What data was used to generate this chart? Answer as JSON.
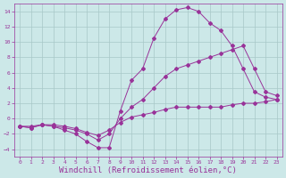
{
  "background_color": "#cce8e8",
  "grid_color": "#a8c8c8",
  "line_color": "#993399",
  "marker": "D",
  "marker_size": 2,
  "xlim": [
    -0.5,
    23.5
  ],
  "ylim": [
    -5,
    15
  ],
  "xlabel": "Windchill (Refroidissement éolien,°C)",
  "xlabel_fontsize": 6.5,
  "yticks": [
    -4,
    -2,
    0,
    2,
    4,
    6,
    8,
    10,
    12,
    14
  ],
  "xticks": [
    0,
    1,
    2,
    3,
    4,
    5,
    6,
    7,
    8,
    9,
    10,
    11,
    12,
    13,
    14,
    15,
    16,
    17,
    18,
    19,
    20,
    21,
    22,
    23
  ],
  "series1_x": [
    0,
    1,
    2,
    3,
    4,
    5,
    6,
    7,
    8,
    9,
    10,
    11,
    12,
    13,
    14,
    15,
    16,
    17,
    18,
    19,
    20,
    21,
    22,
    23
  ],
  "series1_y": [
    -1.0,
    -1.2,
    -0.8,
    -0.8,
    -1.0,
    -1.3,
    -1.8,
    -2.2,
    -1.5,
    -0.5,
    0.2,
    0.5,
    0.8,
    1.2,
    1.5,
    1.5,
    1.5,
    1.5,
    1.5,
    1.8,
    2.0,
    2.0,
    2.2,
    2.5
  ],
  "series2_x": [
    0,
    1,
    2,
    3,
    4,
    5,
    6,
    7,
    8,
    9,
    10,
    11,
    12,
    13,
    14,
    15,
    16,
    17,
    18,
    19,
    20,
    21,
    22,
    23
  ],
  "series2_y": [
    -1.0,
    -1.0,
    -0.8,
    -1.0,
    -1.2,
    -1.5,
    -2.0,
    -2.8,
    -2.0,
    0.0,
    1.5,
    2.5,
    4.0,
    5.5,
    6.5,
    7.0,
    7.5,
    8.0,
    8.5,
    9.0,
    9.5,
    6.5,
    3.5,
    3.0
  ],
  "series3_x": [
    0,
    1,
    2,
    3,
    4,
    5,
    6,
    7,
    8,
    9,
    10,
    11,
    12,
    13,
    14,
    15,
    16,
    17,
    18,
    19,
    20,
    21,
    22,
    23
  ],
  "series3_y": [
    -1.0,
    -1.2,
    -0.8,
    -1.0,
    -1.5,
    -2.0,
    -3.0,
    -3.8,
    -3.8,
    1.0,
    5.0,
    6.5,
    10.5,
    13.0,
    14.2,
    14.5,
    14.0,
    12.5,
    11.5,
    9.5,
    6.5,
    3.5,
    2.8,
    2.5
  ]
}
